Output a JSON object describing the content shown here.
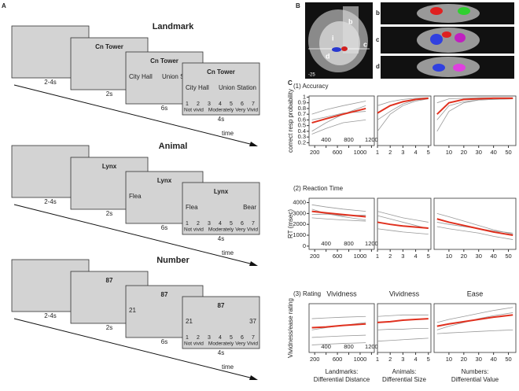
{
  "panel_letters": [
    "A",
    "B",
    "C"
  ],
  "panel_a": {
    "sections": [
      {
        "title": "Landmark",
        "cue": "Cn Tower",
        "options": [
          "City Hall",
          "Union Station"
        ],
        "durations": [
          "2-4s",
          "2s",
          "6s",
          "4s"
        ],
        "time": "time"
      },
      {
        "title": "Animal",
        "cue": "Lynx",
        "options": [
          "Flea",
          "Bear"
        ],
        "durations": [
          "2-4s",
          "2s",
          "6s",
          "4s"
        ],
        "time": "time"
      },
      {
        "title": "Number",
        "cue": "87",
        "options": [
          "21",
          "37"
        ],
        "durations": [
          "2-4s",
          "2s",
          "6s",
          "4s"
        ],
        "time": "time"
      }
    ],
    "scale": {
      "numbers": [
        1,
        2,
        3,
        4,
        5,
        6,
        7
      ],
      "anchors": [
        "Not vivid",
        "Moderately",
        "Very Vivid"
      ]
    }
  },
  "panel_b": {
    "labels": [
      "b",
      "c",
      "d",
      "i"
    ],
    "slice": "-25"
  },
  "chart_data": [
    {
      "type": "line",
      "heading": "(1) Accuracy",
      "ylabel": "correct resp probability",
      "x": [
        150,
        400,
        700,
        1100
      ],
      "xlim": [
        100,
        1250
      ],
      "xticks": [
        200,
        400,
        600,
        800,
        1000,
        1200
      ],
      "ylim": [
        0.15,
        1.02
      ],
      "yticks": [
        0.2,
        0.3,
        0.4,
        0.5,
        0.6,
        0.7,
        0.8,
        0.9,
        1
      ],
      "series": [
        {
          "color": "#999999",
          "values": [
            0.4,
            0.55,
            0.7,
            0.85
          ]
        },
        {
          "color": "#999999",
          "values": [
            0.7,
            0.78,
            0.85,
            0.93
          ]
        },
        {
          "color": "#999999",
          "values": [
            0.35,
            0.45,
            0.55,
            0.6
          ]
        },
        {
          "color": "#999999",
          "values": [
            0.6,
            0.65,
            0.72,
            0.75
          ]
        },
        {
          "color": "#e0301e",
          "values": [
            0.55,
            0.62,
            0.7,
            0.8
          ]
        }
      ]
    },
    {
      "type": "line",
      "x": [
        1,
        2,
        3,
        4,
        5
      ],
      "xlim": [
        1,
        5.2
      ],
      "xticks": [
        1,
        2,
        3,
        4,
        5
      ],
      "ylim": [
        0.15,
        1.02
      ],
      "series": [
        {
          "color": "#999999",
          "values": [
            0.4,
            0.7,
            0.85,
            0.93,
            0.97
          ]
        },
        {
          "color": "#999999",
          "values": [
            0.85,
            0.92,
            0.96,
            0.98,
            0.99
          ]
        },
        {
          "color": "#999999",
          "values": [
            0.6,
            0.75,
            0.88,
            0.95,
            0.97
          ]
        },
        {
          "color": "#e0301e",
          "values": [
            0.72,
            0.85,
            0.92,
            0.96,
            0.98
          ]
        }
      ]
    },
    {
      "type": "line",
      "x": [
        2,
        10,
        20,
        30,
        40,
        53
      ],
      "xlim": [
        0,
        55
      ],
      "xticks": [
        10,
        20,
        30,
        40,
        50
      ],
      "ylim": [
        0.15,
        1.02
      ],
      "series": [
        {
          "color": "#999999",
          "values": [
            0.4,
            0.75,
            0.9,
            0.95,
            0.96,
            0.97
          ]
        },
        {
          "color": "#999999",
          "values": [
            0.9,
            0.97,
            0.98,
            0.99,
            0.99,
            0.99
          ]
        },
        {
          "color": "#999999",
          "values": [
            0.6,
            0.85,
            0.92,
            0.95,
            0.96,
            0.97
          ]
        },
        {
          "color": "#e0301e",
          "values": [
            0.7,
            0.9,
            0.96,
            0.97,
            0.98,
            0.98
          ]
        }
      ]
    },
    {
      "type": "line",
      "heading": "(2) Reaction Time",
      "ylabel": "RT (msec)",
      "x": [
        150,
        400,
        700,
        1100
      ],
      "xlim": [
        100,
        1250
      ],
      "xticks": [
        200,
        400,
        600,
        800,
        1000,
        1200
      ],
      "ylim": [
        -300,
        4400
      ],
      "yticks": [
        0,
        1000,
        2000,
        3000,
        4000
      ],
      "series": [
        {
          "color": "#999999",
          "values": [
            3800,
            3600,
            3400,
            3200
          ]
        },
        {
          "color": "#999999",
          "values": [
            2600,
            2500,
            2400,
            2300
          ]
        },
        {
          "color": "#999999",
          "values": [
            3400,
            3000,
            2700,
            2400
          ]
        },
        {
          "color": "#999999",
          "values": [
            2900,
            2950,
            2800,
            2850
          ]
        },
        {
          "color": "#e0301e",
          "values": [
            3200,
            3050,
            2900,
            2700
          ]
        }
      ]
    },
    {
      "type": "line",
      "x": [
        1,
        2,
        3,
        4,
        5
      ],
      "xlim": [
        1,
        5.2
      ],
      "xticks": [
        1,
        2,
        3,
        4,
        5
      ],
      "ylim": [
        -300,
        4400
      ],
      "series": [
        {
          "color": "#999999",
          "values": [
            2800,
            2500,
            2200,
            1900,
            1600
          ]
        },
        {
          "color": "#999999",
          "values": [
            1600,
            1450,
            1300,
            1200,
            1100
          ]
        },
        {
          "color": "#999999",
          "values": [
            3200,
            2900,
            2600,
            2400,
            2200
          ]
        },
        {
          "color": "#e0301e",
          "values": [
            2200,
            2000,
            1850,
            1750,
            1650
          ]
        }
      ]
    },
    {
      "type": "line",
      "x": [
        2,
        10,
        20,
        30,
        40,
        53
      ],
      "xlim": [
        0,
        55
      ],
      "xticks": [
        10,
        20,
        30,
        40,
        50
      ],
      "ylim": [
        -300,
        4400
      ],
      "series": [
        {
          "color": "#999999",
          "values": [
            3000,
            2700,
            2300,
            1900,
            1500,
            1100
          ]
        },
        {
          "color": "#999999",
          "values": [
            2200,
            2000,
            1800,
            1600,
            1400,
            1200
          ]
        },
        {
          "color": "#999999",
          "values": [
            1800,
            1600,
            1400,
            1200,
            900,
            600
          ]
        },
        {
          "color": "#e0301e",
          "values": [
            2500,
            2200,
            1900,
            1600,
            1300,
            1000
          ]
        }
      ]
    },
    {
      "type": "line",
      "heading": "(3) Rating",
      "title": "Vividness",
      "ylabel": "Vividness/ease rating",
      "xlabel": [
        "Landmarks:",
        "Differential Distance"
      ],
      "x": [
        150,
        400,
        700,
        1100
      ],
      "xlim": [
        100,
        1250
      ],
      "xticks": [
        200,
        400,
        600,
        800,
        1000,
        1200
      ],
      "ylim": [
        2,
        8.5
      ],
      "series": [
        {
          "color": "#999999",
          "values": [
            6.5,
            6.6,
            6.7,
            6.8
          ]
        },
        {
          "color": "#999999",
          "values": [
            4,
            4.1,
            4.2,
            4.3
          ]
        },
        {
          "color": "#999999",
          "values": [
            5,
            5.3,
            5.6,
            6
          ]
        },
        {
          "color": "#999999",
          "values": [
            3,
            3.1,
            3.2,
            3.3
          ]
        },
        {
          "color": "#e0301e",
          "values": [
            5.3,
            5.4,
            5.6,
            5.8
          ]
        }
      ]
    },
    {
      "type": "line",
      "title": "Vividness",
      "xlabel": [
        "Animals:",
        "Differential Size"
      ],
      "x": [
        1,
        2,
        3,
        4,
        5
      ],
      "xlim": [
        1,
        5.2
      ],
      "xticks": [
        1,
        2,
        3,
        4,
        5
      ],
      "ylim": [
        2,
        8.5
      ],
      "series": [
        {
          "color": "#999999",
          "values": [
            6.8,
            6.9,
            7,
            7,
            7
          ]
        },
        {
          "color": "#999999",
          "values": [
            5,
            5.1,
            5.1,
            5.2,
            5.2
          ]
        },
        {
          "color": "#999999",
          "values": [
            3.5,
            3.6,
            3.7,
            3.8,
            3.9
          ]
        },
        {
          "color": "#e0301e",
          "values": [
            6,
            6.1,
            6.3,
            6.4,
            6.5
          ]
        }
      ]
    },
    {
      "type": "line",
      "title": "Ease",
      "xlabel": [
        "Numbers:",
        "Differential Value"
      ],
      "x": [
        2,
        10,
        20,
        30,
        40,
        53
      ],
      "xlim": [
        0,
        55
      ],
      "xticks": [
        10,
        20,
        30,
        40,
        50
      ],
      "ylim": [
        2,
        8.5
      ],
      "series": [
        {
          "color": "#999999",
          "values": [
            6,
            6.4,
            6.8,
            7.2,
            7.6,
            8
          ]
        },
        {
          "color": "#999999",
          "values": [
            4.5,
            4.6,
            4.7,
            4.8,
            4.9,
            5
          ]
        },
        {
          "color": "#999999",
          "values": [
            5,
            5.5,
            6,
            6.5,
            6.9,
            7.3
          ]
        },
        {
          "color": "#e0301e",
          "values": [
            5.5,
            5.8,
            6.1,
            6.4,
            6.7,
            7
          ]
        }
      ]
    }
  ]
}
